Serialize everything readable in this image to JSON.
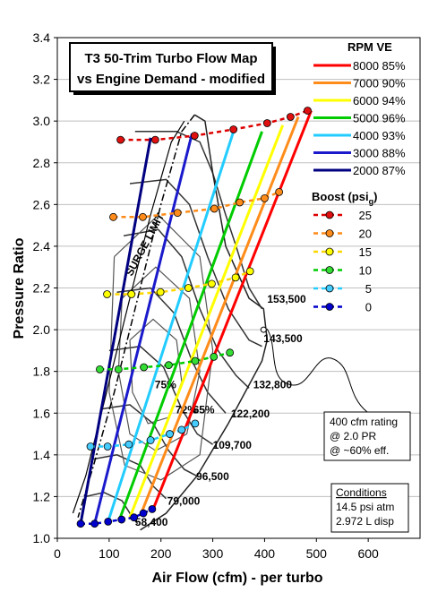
{
  "chart_data": {
    "type": "line",
    "title": "T3 50-Trim Turbo Flow Map",
    "subtitle": "vs Engine Demand - modified",
    "xlabel": "Air Flow (cfm) - per turbo",
    "ylabel": "Pressure Ratio",
    "xlim": [
      0,
      700
    ],
    "ylim": [
      1.0,
      3.4
    ],
    "x_ticks": [
      "0",
      "100",
      "200",
      "300",
      "400",
      "500",
      "600"
    ],
    "y_ticks": [
      "1.0",
      "1.2",
      "1.4",
      "1.6",
      "1.8",
      "2.0",
      "2.2",
      "2.4",
      "2.6",
      "2.8",
      "3.0",
      "3.2",
      "3.4"
    ],
    "grid": "horizontal",
    "legend_rpm_header": "RPM  VE",
    "legend_boost_header": "Boost (psi",
    "legend_boost_sub": "g",
    "legend_boost_close": ")",
    "rpm_series": [
      {
        "name": "8000  85%",
        "color": "#ff0000",
        "x": [
          185,
          490
        ],
        "y": [
          1.14,
          3.05
        ]
      },
      {
        "name": "7000  90%",
        "color": "#ff8c1a",
        "x": [
          162,
          465
        ],
        "y": [
          1.12,
          3.02
        ]
      },
      {
        "name": "6000  94%",
        "color": "#ffff00",
        "x": [
          140,
          435
        ],
        "y": [
          1.1,
          2.98
        ]
      },
      {
        "name": "5000  96%",
        "color": "#00cc00",
        "x": [
          120,
          395
        ],
        "y": [
          1.09,
          2.95
        ]
      },
      {
        "name": "4000  93%",
        "color": "#22ccff",
        "x": [
          98,
          340
        ],
        "y": [
          1.08,
          2.95
        ]
      },
      {
        "name": "3000  88%",
        "color": "#1a1acc",
        "x": [
          72,
          260
        ],
        "y": [
          1.07,
          2.94
        ]
      },
      {
        "name": "2000 87%",
        "color": "#000080",
        "x": [
          45,
          180
        ],
        "y": [
          1.07,
          2.92
        ]
      }
    ],
    "boost_series": [
      {
        "name": "25",
        "color": "#dd0000",
        "marker": "#e01010",
        "y": 2.91,
        "points": [
          [
            122,
            2.91
          ],
          [
            189,
            2.91
          ],
          [
            265,
            2.93
          ],
          [
            340,
            2.96
          ],
          [
            405,
            2.99
          ],
          [
            450,
            3.02
          ],
          [
            483,
            3.05
          ]
        ]
      },
      {
        "name": "20",
        "color": "#ff8c1a",
        "marker": "#ff8c1a",
        "y": 2.54,
        "points": [
          [
            108,
            2.54
          ],
          [
            165,
            2.54
          ],
          [
            232,
            2.56
          ],
          [
            303,
            2.58
          ],
          [
            352,
            2.61
          ],
          [
            400,
            2.63
          ],
          [
            428,
            2.66
          ]
        ]
      },
      {
        "name": "15",
        "color": "#ffd700",
        "marker": "#ffff00",
        "y": 2.17,
        "points": [
          [
            96,
            2.17
          ],
          [
            143,
            2.17
          ],
          [
            199,
            2.18
          ],
          [
            253,
            2.2
          ],
          [
            298,
            2.22
          ],
          [
            344,
            2.25
          ],
          [
            372,
            2.28
          ]
        ]
      },
      {
        "name": "10",
        "color": "#00cc00",
        "marker": "#33dd33",
        "y": 1.81,
        "points": [
          [
            82,
            1.81
          ],
          [
            118,
            1.81
          ],
          [
            167,
            1.82
          ],
          [
            215,
            1.83
          ],
          [
            266,
            1.85
          ],
          [
            302,
            1.87
          ],
          [
            333,
            1.89
          ]
        ]
      },
      {
        "name": "5",
        "color": "#22ccff",
        "marker": "#44ccff",
        "y": 1.44,
        "points": [
          [
            64,
            1.44
          ],
          [
            97,
            1.44
          ],
          [
            138,
            1.45
          ],
          [
            180,
            1.47
          ],
          [
            217,
            1.5
          ],
          [
            240,
            1.52
          ],
          [
            266,
            1.55
          ]
        ]
      },
      {
        "name": "0",
        "color": "#0000cc",
        "marker": "#0000cc",
        "y": 1.07,
        "points": [
          [
            45,
            1.07
          ],
          [
            72,
            1.07
          ],
          [
            98,
            1.08
          ],
          [
            124,
            1.09
          ],
          [
            148,
            1.1
          ],
          [
            166,
            1.12
          ],
          [
            183,
            1.14
          ]
        ]
      }
    ],
    "contour_labels": [
      {
        "text": "153,500",
        "x": 405,
        "y": 2.13
      },
      {
        "text": "143,500",
        "x": 398,
        "y": 1.94
      },
      {
        "text": "132,800",
        "x": 378,
        "y": 1.72
      },
      {
        "text": "122,200",
        "x": 335,
        "y": 1.58
      },
      {
        "text": "109,700",
        "x": 300,
        "y": 1.43
      },
      {
        "text": "96,500",
        "x": 268,
        "y": 1.28
      },
      {
        "text": "79,000",
        "x": 212,
        "y": 1.16
      },
      {
        "text": "58,400",
        "x": 150,
        "y": 1.06
      },
      {
        "text": "75%",
        "x": 188,
        "y": 1.72
      },
      {
        "text": "72%",
        "x": 228,
        "y": 1.6
      },
      {
        "text": "65%",
        "x": 262,
        "y": 1.6
      }
    ],
    "surge_label": "SURGE LIMIT"
  },
  "annotations": {
    "rating_lines": [
      "400 cfm rating",
      "@ 2.0 PR",
      "@ ~60% eff."
    ],
    "conditions_title": "Conditions",
    "conditions_lines": [
      "14.5 psi atm",
      "2.972 L disp"
    ]
  }
}
